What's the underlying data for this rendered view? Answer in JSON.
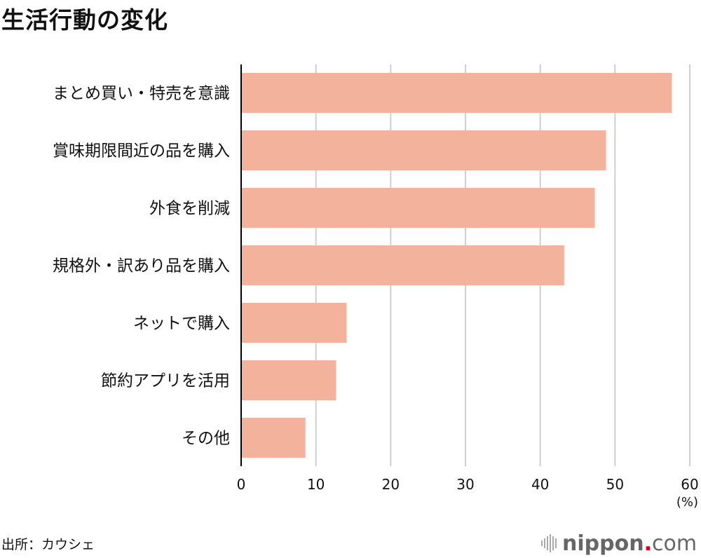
{
  "chart_data": {
    "type": "bar",
    "orientation": "horizontal",
    "title": "生活行動の変化",
    "categories": [
      "まとめ買い・特売を意識",
      "賞味期限間近の品を購入",
      "外食を削減",
      "規格外・訳あり品を購入",
      "ネットで購入",
      "節約アプリを活用",
      "その他"
    ],
    "values": [
      57.6,
      48.8,
      47.3,
      43.2,
      14.1,
      12.7,
      8.6
    ],
    "xlabel": "(%)",
    "xlim": [
      0,
      60
    ],
    "xticks": [
      0,
      10,
      20,
      30,
      40,
      50,
      60
    ],
    "grid": true,
    "bar_color": "#f2b29b"
  },
  "footer": {
    "source": "出所：カウシェ",
    "logo": {
      "name": "nippon",
      "dot": ".",
      "tld": "com"
    }
  }
}
